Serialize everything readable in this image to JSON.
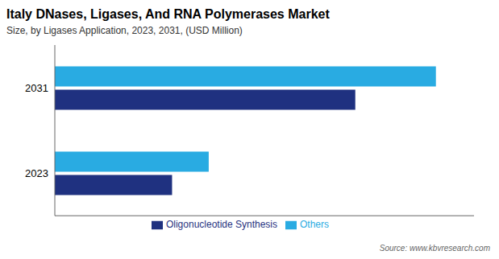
{
  "chart_data": {
    "type": "bar",
    "orientation": "horizontal",
    "title": "Italy DNases, Ligases, And RNA Polymerases Market",
    "subtitle": "Size, by Ligases Application, 2023, 2031, (USD Million)",
    "source": "Source: www.kbvresearch.com",
    "categories": [
      "2031",
      "2023"
    ],
    "series": [
      {
        "name": "Others",
        "color": "#29ABE2",
        "values": [
          5.2,
          2.1
        ]
      },
      {
        "name": "Oligonucleotide Synthesis",
        "color": "#1F3180",
        "values": [
          4.1,
          1.6
        ]
      }
    ],
    "xlim": [
      0,
      5.72
    ],
    "grid": false,
    "legend": "bottom",
    "tick_labels": "y"
  }
}
